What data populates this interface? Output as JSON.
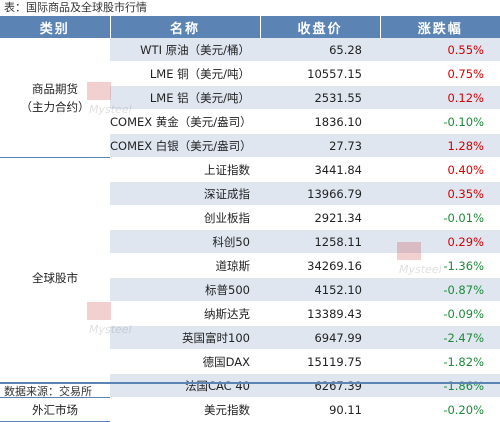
{
  "caption": "表：国际商品及全球股市行情",
  "headers": [
    "类别",
    "名称",
    "收盘价",
    "涨跌幅"
  ],
  "categories": [
    {
      "line1": "商品期货",
      "line2": "（主力合约）"
    },
    {
      "line1": "全球股市",
      "line2": ""
    },
    {
      "line1": "外汇市场",
      "line2": ""
    }
  ],
  "rows": [
    {
      "name": "WTI 原油（美元/桶）",
      "close": "65.28",
      "change": "0.55%",
      "dir": "up"
    },
    {
      "name": "LME 铜（美元/吨）",
      "close": "10557.15",
      "change": "0.75%",
      "dir": "up"
    },
    {
      "name": "LME 铝（美元/吨）",
      "close": "2531.55",
      "change": "0.12%",
      "dir": "up"
    },
    {
      "name": "COMEX 黄金（美元/盎司）",
      "close": "1836.10",
      "change": "-0.10%",
      "dir": "down"
    },
    {
      "name": "COMEX 白银（美元/盎司）",
      "close": "27.73",
      "change": "1.28%",
      "dir": "up"
    },
    {
      "name": "上证指数",
      "close": "3441.84",
      "change": "0.40%",
      "dir": "up"
    },
    {
      "name": "深证成指",
      "close": "13966.79",
      "change": "0.35%",
      "dir": "up"
    },
    {
      "name": "创业板指",
      "close": "2921.34",
      "change": "-0.01%",
      "dir": "down"
    },
    {
      "name": "科创50",
      "close": "1258.11",
      "change": "0.29%",
      "dir": "up"
    },
    {
      "name": "道琼斯",
      "close": "34269.16",
      "change": "-1.36%",
      "dir": "down"
    },
    {
      "name": "标普500",
      "close": "4152.10",
      "change": "-0.87%",
      "dir": "down"
    },
    {
      "name": "纳斯达克",
      "close": "13389.43",
      "change": "-0.09%",
      "dir": "down"
    },
    {
      "name": "英国富时100",
      "close": "6947.99",
      "change": "-2.47%",
      "dir": "down"
    },
    {
      "name": "德国DAX",
      "close": "15119.75",
      "change": "-1.82%",
      "dir": "down"
    },
    {
      "name": "法国CAC 40",
      "close": "6267.39",
      "change": "-1.86%",
      "dir": "down"
    },
    {
      "name": "美元指数",
      "close": "90.11",
      "change": "-0.20%",
      "dir": "down"
    }
  ],
  "source": "数据来源：交易所",
  "watermark_text": "Mysteel",
  "colors": {
    "header": "#5b84b5",
    "stripe": "#dfe6f0",
    "up": "#d40000",
    "down": "#1d8a3a"
  }
}
